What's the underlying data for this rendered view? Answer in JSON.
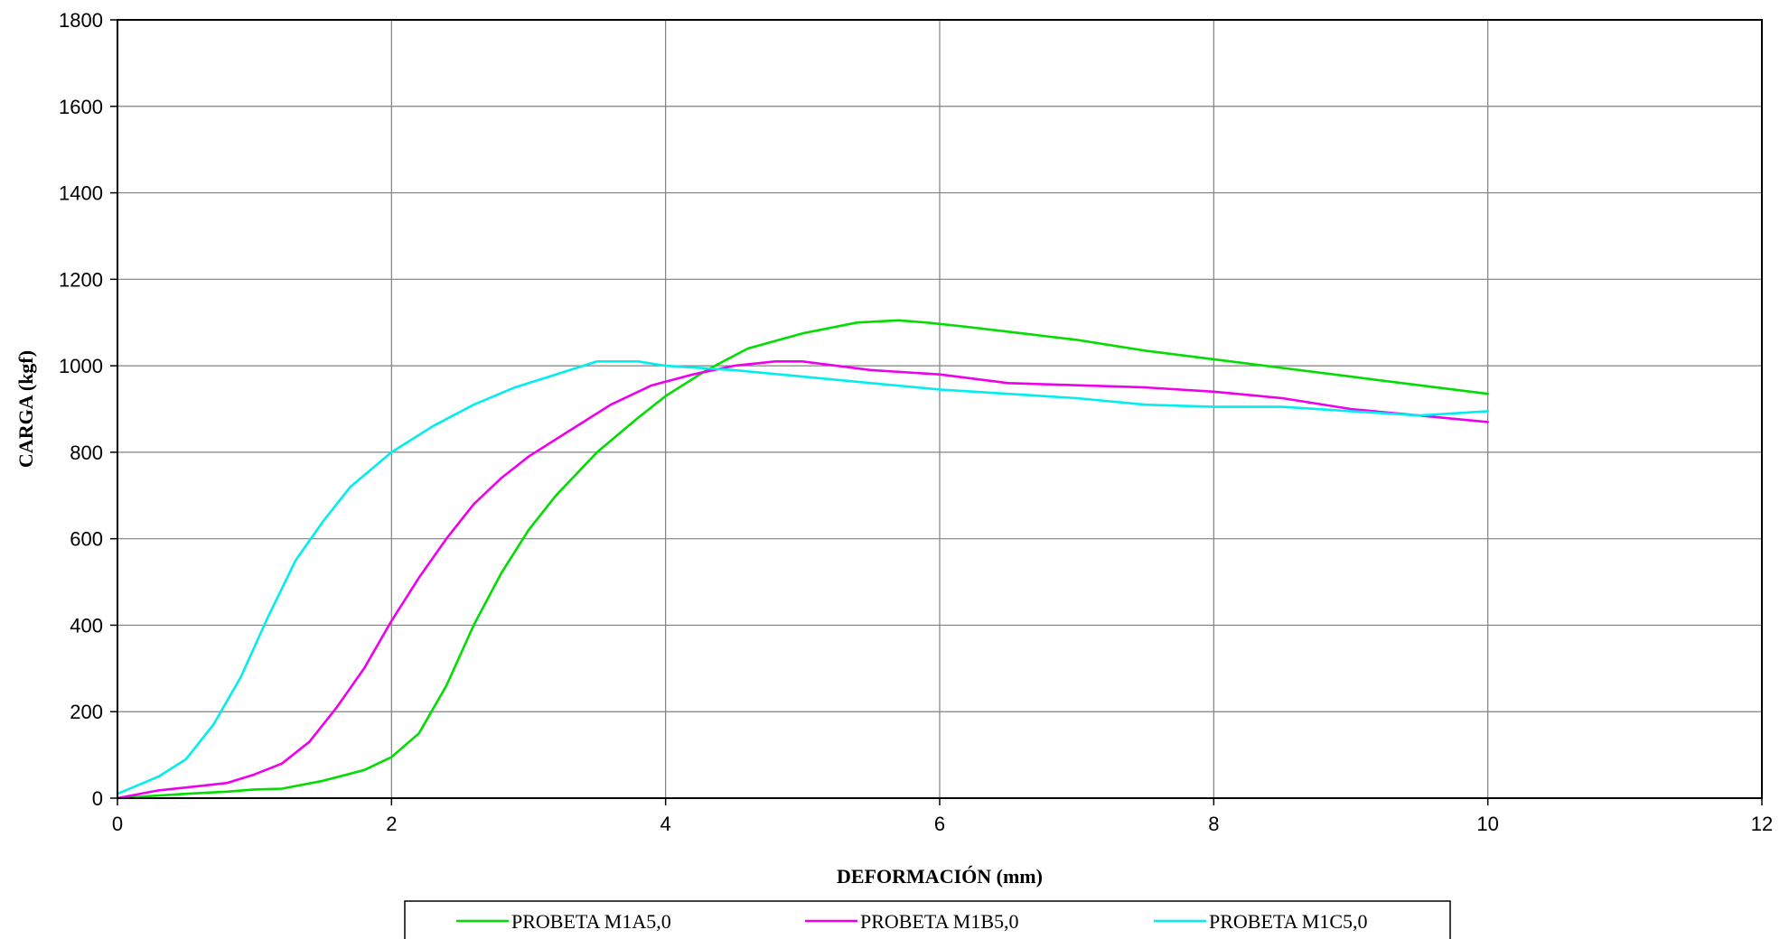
{
  "chart_data": {
    "type": "line",
    "title": "",
    "xlabel": "DEFORMACIÓN (mm)",
    "ylabel": "CARGA (kgf)",
    "xlim": [
      0,
      12
    ],
    "ylim": [
      0,
      1800
    ],
    "x_ticks": [
      "0",
      "2",
      "4",
      "6",
      "8",
      "10",
      "12"
    ],
    "y_ticks": [
      "0",
      "200",
      "400",
      "600",
      "800",
      "1000",
      "1200",
      "1400",
      "1600",
      "1800"
    ],
    "grid": true,
    "legend_position": "bottom",
    "series": [
      {
        "name": "PROBETA M1A5,0",
        "color": "#00dd00",
        "x": [
          0,
          0.5,
          0.8,
          1.0,
          1.2,
          1.5,
          1.8,
          2.0,
          2.2,
          2.4,
          2.6,
          2.8,
          3.0,
          3.2,
          3.5,
          3.8,
          4.0,
          4.3,
          4.6,
          5.0,
          5.4,
          5.7,
          5.9,
          6.2,
          6.6,
          7.0,
          7.5,
          8.0,
          8.5,
          9.0,
          9.5,
          10.0
        ],
        "y": [
          0,
          10,
          15,
          20,
          22,
          40,
          65,
          95,
          150,
          260,
          400,
          520,
          620,
          700,
          800,
          880,
          930,
          990,
          1040,
          1075,
          1100,
          1105,
          1100,
          1090,
          1075,
          1060,
          1035,
          1015,
          995,
          975,
          955,
          935
        ]
      },
      {
        "name": "PROBETA M1B5,0",
        "color": "#ee00ee",
        "x": [
          0,
          0.3,
          0.6,
          0.8,
          1.0,
          1.2,
          1.4,
          1.6,
          1.8,
          2.0,
          2.2,
          2.4,
          2.6,
          2.8,
          3.0,
          3.3,
          3.6,
          3.9,
          4.2,
          4.5,
          4.8,
          5.0,
          5.5,
          6.0,
          6.5,
          7.0,
          7.5,
          8.0,
          8.5,
          9.0,
          9.5,
          10.0
        ],
        "y": [
          0,
          18,
          28,
          35,
          55,
          80,
          130,
          210,
          300,
          410,
          510,
          600,
          680,
          740,
          790,
          850,
          910,
          955,
          980,
          1000,
          1010,
          1010,
          990,
          980,
          960,
          955,
          950,
          940,
          925,
          900,
          885,
          870
        ]
      },
      {
        "name": "PROBETA M1C5,0",
        "color": "#00eeee",
        "x": [
          0,
          0.3,
          0.5,
          0.7,
          0.9,
          1.1,
          1.3,
          1.5,
          1.7,
          2.0,
          2.3,
          2.6,
          2.9,
          3.2,
          3.5,
          3.8,
          4.0,
          4.5,
          5.0,
          5.5,
          6.0,
          6.5,
          7.0,
          7.5,
          8.0,
          8.5,
          9.0,
          9.5,
          10.0
        ],
        "y": [
          10,
          50,
          90,
          170,
          280,
          420,
          550,
          640,
          720,
          800,
          860,
          910,
          950,
          980,
          1010,
          1010,
          1000,
          990,
          975,
          960,
          945,
          935,
          925,
          910,
          905,
          905,
          895,
          885,
          895
        ]
      }
    ]
  }
}
